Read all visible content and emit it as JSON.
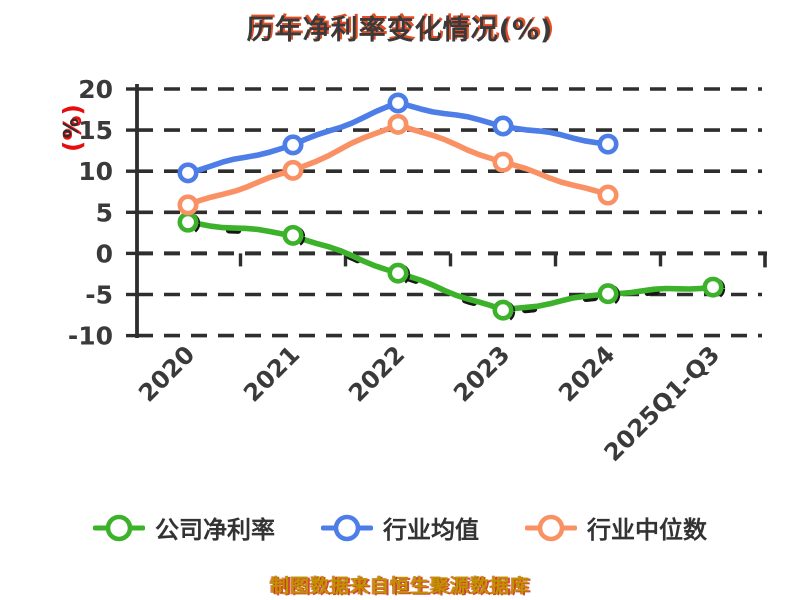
{
  "chart_data": {
    "type": "line",
    "title": "历年净利率变化情况(%)",
    "categories": [
      "2020",
      "2021",
      "2022",
      "2023",
      "2024",
      "2025Q1-Q3"
    ],
    "series": [
      {
        "name": "公司净利率",
        "color": "#3cb22a",
        "marker": "circle-open",
        "values": [
          3.8,
          2.2,
          -2.4,
          -6.9,
          -4.9,
          -4.1
        ]
      },
      {
        "name": "行业均值",
        "color": "#4d7de6",
        "marker": "circle-open",
        "values": [
          9.8,
          13.2,
          18.3,
          15.5,
          13.3,
          null
        ]
      },
      {
        "name": "行业中位数",
        "color": "#fa9164",
        "marker": "circle-open",
        "values": [
          5.9,
          10.1,
          15.7,
          11.1,
          7.1,
          null
        ]
      }
    ],
    "ylabel": "(%)",
    "ylabel_overlay": "%",
    "yticks": [
      20,
      15,
      10,
      5,
      0,
      -5,
      -10
    ],
    "ylim": [
      -10,
      20
    ],
    "grid": "horizontal-dashed",
    "legend_position": "bottom",
    "style": "xkcd-hand-drawn",
    "colors": {
      "axis": "#2e2e2e",
      "tick_label": "#3a3a3a",
      "title_shadow_red": "#dd3000",
      "ylabel_red": "#e60d0d",
      "footer_gold": "#bf9200"
    }
  },
  "footer": {
    "text": "制图数据来自恒生聚源数据库"
  }
}
